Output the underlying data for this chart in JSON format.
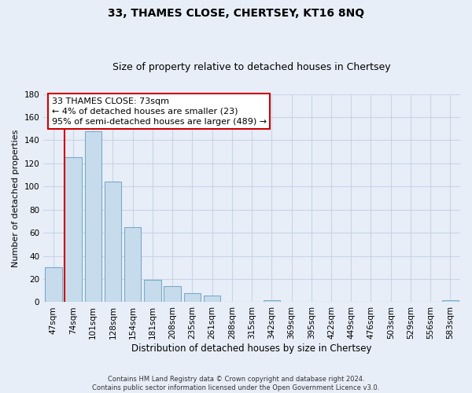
{
  "title": "33, THAMES CLOSE, CHERTSEY, KT16 8NQ",
  "subtitle": "Size of property relative to detached houses in Chertsey",
  "xlabel": "Distribution of detached houses by size in Chertsey",
  "ylabel": "Number of detached properties",
  "bar_labels": [
    "47sqm",
    "74sqm",
    "101sqm",
    "128sqm",
    "154sqm",
    "181sqm",
    "208sqm",
    "235sqm",
    "261sqm",
    "288sqm",
    "315sqm",
    "342sqm",
    "369sqm",
    "395sqm",
    "422sqm",
    "449sqm",
    "476sqm",
    "503sqm",
    "529sqm",
    "556sqm",
    "583sqm"
  ],
  "bar_values": [
    30,
    125,
    148,
    104,
    65,
    19,
    14,
    8,
    6,
    0,
    0,
    2,
    0,
    0,
    0,
    0,
    0,
    0,
    0,
    0,
    2
  ],
  "bar_color": "#c6dcec",
  "bar_edge_color": "#7aaac8",
  "vline_color": "#cc0000",
  "ylim": [
    0,
    180
  ],
  "yticks": [
    0,
    20,
    40,
    60,
    80,
    100,
    120,
    140,
    160,
    180
  ],
  "annotation_line1": "33 THAMES CLOSE: 73sqm",
  "annotation_line2": "← 4% of detached houses are smaller (23)",
  "annotation_line3": "95% of semi-detached houses are larger (489) →",
  "footer_line1": "Contains HM Land Registry data © Crown copyright and database right 2024.",
  "footer_line2": "Contains public sector information licensed under the Open Government Licence v3.0.",
  "background_color": "#e8eef8",
  "grid_color": "#c8d4e8",
  "title_fontsize": 10,
  "subtitle_fontsize": 9,
  "ylabel_fontsize": 8,
  "xlabel_fontsize": 8.5,
  "tick_fontsize": 7.5,
  "annotation_fontsize": 8,
  "footer_fontsize": 6
}
